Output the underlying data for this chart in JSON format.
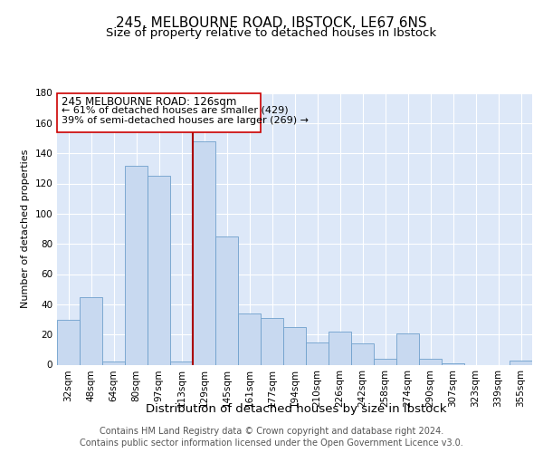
{
  "title": "245, MELBOURNE ROAD, IBSTOCK, LE67 6NS",
  "subtitle": "Size of property relative to detached houses in Ibstock",
  "xlabel": "Distribution of detached houses by size in Ibstock",
  "ylabel": "Number of detached properties",
  "bar_labels": [
    "32sqm",
    "48sqm",
    "64sqm",
    "80sqm",
    "97sqm",
    "113sqm",
    "129sqm",
    "145sqm",
    "161sqm",
    "177sqm",
    "194sqm",
    "210sqm",
    "226sqm",
    "242sqm",
    "258sqm",
    "274sqm",
    "290sqm",
    "307sqm",
    "323sqm",
    "339sqm",
    "355sqm"
  ],
  "bar_values": [
    30,
    45,
    2,
    132,
    125,
    2,
    148,
    85,
    34,
    31,
    25,
    15,
    22,
    14,
    4,
    21,
    4,
    1,
    0,
    0,
    3
  ],
  "bar_color": "#c8d9f0",
  "bar_edge_color": "#6fa0cc",
  "ref_line_index": 6,
  "reference_line_label": "245 MELBOURNE ROAD: 126sqm",
  "annotation_line1": "← 61% of detached houses are smaller (429)",
  "annotation_line2": "39% of semi-detached houses are larger (269) →",
  "ylim": [
    0,
    180
  ],
  "yticks": [
    0,
    20,
    40,
    60,
    80,
    100,
    120,
    140,
    160,
    180
  ],
  "box_color": "#ffffff",
  "box_edge_color": "#cc0000",
  "ref_line_color": "#aa0000",
  "footer_line1": "Contains HM Land Registry data © Crown copyright and database right 2024.",
  "footer_line2": "Contains public sector information licensed under the Open Government Licence v3.0.",
  "background_color": "#dde8f8",
  "grid_color": "#c0d0e8",
  "fig_background": "#ffffff",
  "title_fontsize": 11,
  "subtitle_fontsize": 9.5,
  "xlabel_fontsize": 9.5,
  "ylabel_fontsize": 8,
  "tick_fontsize": 7.5,
  "footer_fontsize": 7,
  "annotation_fontsize": 8.5
}
